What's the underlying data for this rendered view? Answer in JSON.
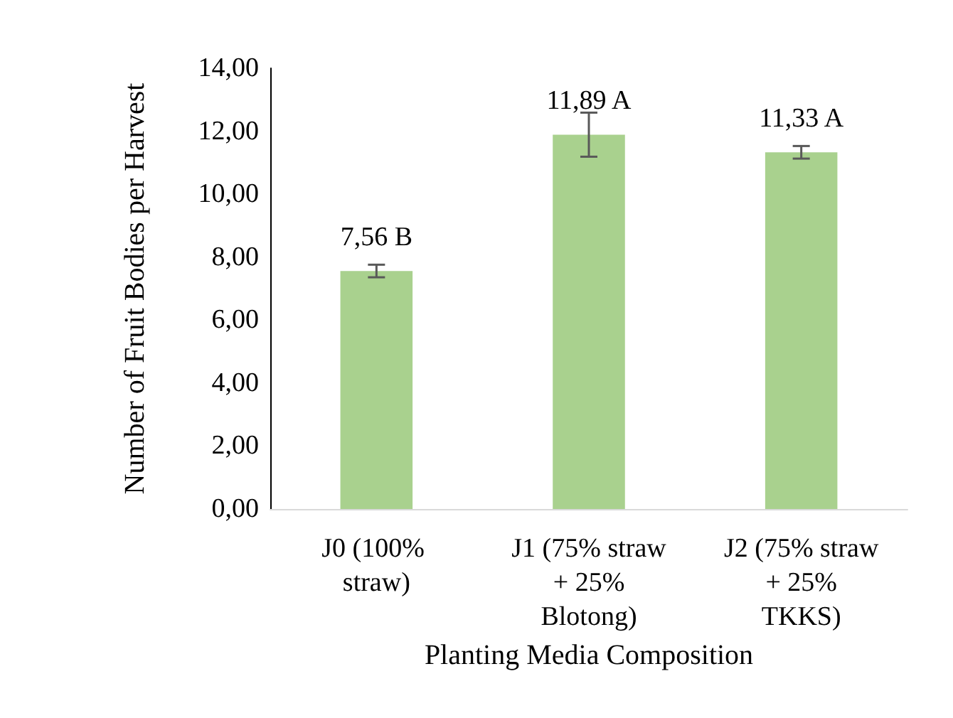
{
  "chart_data": {
    "type": "bar",
    "xlabel": "Planting Media Composition",
    "ylabel": "Number of Fruit Bodies per Harvest",
    "categories": [
      "J0 (100% straw)",
      "J1 (75% straw + 25% Blotong)",
      "J2 (75% straw + 25% TKKS)"
    ],
    "values": [
      7.56,
      11.89,
      11.33
    ],
    "color": "#a9d18e",
    "errors": [
      0.2,
      0.7,
      0.2
    ],
    "value_labels": [
      "7,56 B",
      "11,89 A",
      "11,33 A"
    ],
    "ylim": [
      0,
      14
    ],
    "yticks": [
      {
        "value": 0,
        "label": "0,00"
      },
      {
        "value": 2,
        "label": "2,00"
      },
      {
        "value": 4,
        "label": "4,00"
      },
      {
        "value": 6,
        "label": "6,00"
      },
      {
        "value": 8,
        "label": "8,00"
      },
      {
        "value": 10,
        "label": "10,00"
      },
      {
        "value": 12,
        "label": "12,00"
      },
      {
        "value": 14,
        "label": "14,00"
      }
    ],
    "grid": false
  }
}
